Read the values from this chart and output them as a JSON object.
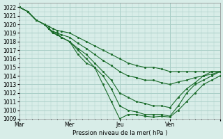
{
  "title": "",
  "xlabel": "Pression niveau de la mer( hPa )",
  "ylabel": "",
  "background_color": "#d8ede8",
  "plot_bg_color": "#d8ede8",
  "grid_color": "#aacfc8",
  "line_color": "#1a6b2a",
  "xlim": [
    0,
    96
  ],
  "ylim": [
    1009,
    1022.5
  ],
  "yticks": [
    1009,
    1010,
    1011,
    1012,
    1013,
    1014,
    1015,
    1016,
    1017,
    1018,
    1019,
    1020,
    1021,
    1022
  ],
  "xtick_positions": [
    0,
    24,
    48,
    72,
    96
  ],
  "xtick_labels": [
    "Mar",
    "Mer",
    "Jeu",
    "Ven",
    ""
  ],
  "lines": [
    {
      "x": [
        0,
        4,
        8,
        12,
        14,
        16,
        18,
        20,
        24,
        28,
        32,
        36,
        40,
        44,
        48,
        52,
        56,
        60,
        64,
        68,
        72,
        76,
        80,
        84,
        88,
        92,
        96
      ],
      "y": [
        1022,
        1021.5,
        1020.5,
        1020,
        1019.5,
        1019,
        1019,
        1018.5,
        1018,
        1016.5,
        1015.5,
        1015,
        1013,
        1011,
        1009,
        1009.5,
        1009.5,
        1009.3,
        1009.2,
        1009.3,
        1009.2,
        1010,
        1011,
        1012,
        1013,
        1013.5,
        1014
      ]
    },
    {
      "x": [
        0,
        4,
        8,
        12,
        14,
        16,
        18,
        20,
        24,
        28,
        32,
        36,
        40,
        44,
        48,
        52,
        56,
        60,
        64,
        68,
        72,
        76,
        80,
        84,
        88,
        92,
        96
      ],
      "y": [
        1022,
        1021.5,
        1020.5,
        1020,
        1019.5,
        1019,
        1018.8,
        1018.5,
        1018,
        1017,
        1016,
        1015,
        1014,
        1012.5,
        1010.5,
        1010,
        1009.8,
        1009.5,
        1009.5,
        1009.5,
        1009.3,
        1010.5,
        1012,
        1013,
        1013.5,
        1014,
        1014.5
      ]
    },
    {
      "x": [
        0,
        4,
        8,
        12,
        14,
        16,
        18,
        20,
        24,
        28,
        32,
        36,
        40,
        44,
        48,
        52,
        56,
        60,
        64,
        68,
        72,
        76,
        80,
        84,
        88,
        92,
        96
      ],
      "y": [
        1022,
        1021.5,
        1020.5,
        1020,
        1019.5,
        1019,
        1018.8,
        1018.5,
        1018,
        1017.2,
        1016.5,
        1015.5,
        1014.5,
        1013.5,
        1012,
        1011.5,
        1011,
        1010.8,
        1010.5,
        1010.5,
        1010.3,
        1011.5,
        1012.5,
        1013.2,
        1014,
        1014.5,
        1014.5
      ]
    },
    {
      "x": [
        0,
        4,
        8,
        12,
        14,
        16,
        18,
        20,
        24,
        28,
        32,
        36,
        40,
        44,
        48,
        52,
        56,
        60,
        64,
        68,
        72,
        76,
        80,
        84,
        88,
        92,
        96
      ],
      "y": [
        1022,
        1021.5,
        1020.5,
        1020,
        1019.5,
        1019.2,
        1019,
        1018.8,
        1018.5,
        1017.8,
        1017.2,
        1016.5,
        1015.8,
        1015.2,
        1014.5,
        1014,
        1013.8,
        1013.5,
        1013.5,
        1013.2,
        1013,
        1013.3,
        1013.5,
        1013.8,
        1014,
        1014.2,
        1014.5
      ]
    },
    {
      "x": [
        0,
        4,
        8,
        12,
        14,
        16,
        18,
        20,
        24,
        28,
        32,
        36,
        40,
        44,
        48,
        52,
        56,
        60,
        64,
        68,
        72,
        76,
        80,
        84,
        88,
        92,
        96
      ],
      "y": [
        1022,
        1021.5,
        1020.5,
        1020,
        1019.8,
        1019.5,
        1019.3,
        1019.2,
        1019,
        1018.5,
        1018,
        1017.5,
        1017,
        1016.5,
        1016,
        1015.5,
        1015.2,
        1015,
        1015,
        1014.8,
        1014.5,
        1014.5,
        1014.5,
        1014.5,
        1014.5,
        1014.5,
        1014.5
      ]
    }
  ]
}
